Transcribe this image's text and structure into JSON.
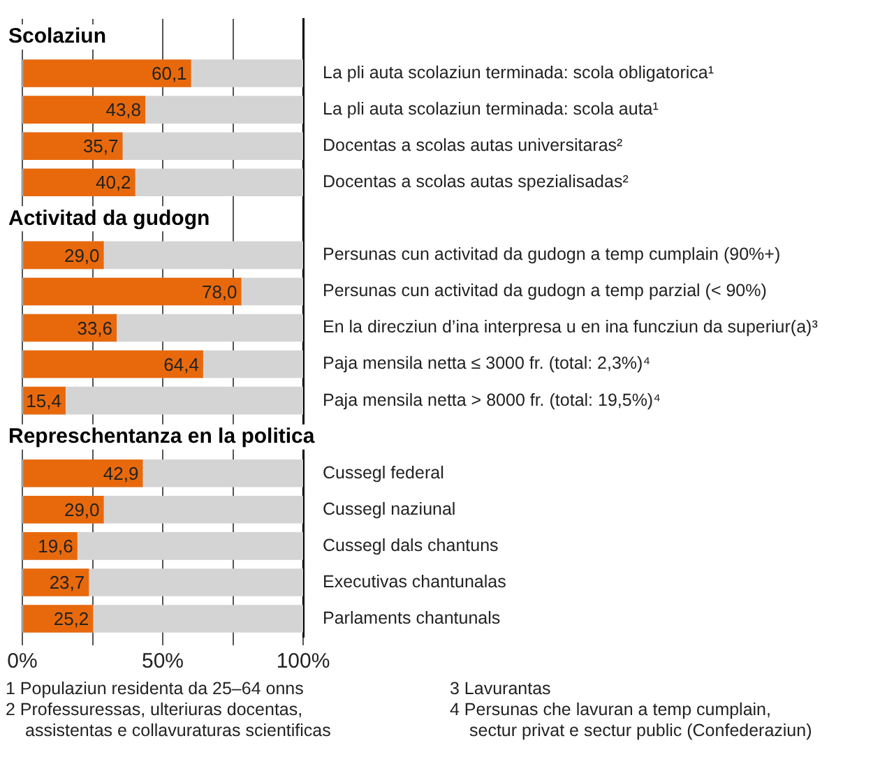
{
  "chart_data": {
    "type": "bar",
    "orientation": "horizontal",
    "categories": [
      "Scolaziun",
      "La pli auta scolaziun terminada: scola obligatorica¹",
      "La pli auta scolaziun terminada: scola auta¹",
      "Docentas a scolas autas universitaras²",
      "Docentas a scolas autas spezialisadas²",
      "Activitad da gudogn",
      "Persunas cun activitad da gudogn a temp cumplain (90%+)",
      "Persunas cun activitad da gudogn a temp parzial (< 90%)",
      "En la direcziun d’ina interpresa u en ina funcziun da superiur(a)³",
      "Paja mensila netta ≤ 3000 fr. (total: 2,3%)⁴",
      "Paja mensila netta > 8000 fr. (total: 19,5%)⁴",
      "Represchentanza en la politica",
      "Cussegl federal",
      "Cussegl naziunal",
      "Cussegl dals chantuns",
      "Executivas chantunalas",
      "Parlaments chantunals"
    ],
    "values": [
      null,
      60.1,
      43.8,
      35.7,
      40.2,
      null,
      29.0,
      78.0,
      33.6,
      64.4,
      15.4,
      null,
      42.9,
      29.0,
      19.6,
      23.7,
      25.2
    ],
    "color": "#e8690c",
    "xlim": [
      0,
      100
    ],
    "xticks": [
      {
        "value": 0,
        "label": "0%"
      },
      {
        "value": 25,
        "label": null
      },
      {
        "value": 50,
        "label": "50%"
      },
      {
        "value": 75,
        "label": null
      },
      {
        "value": 100,
        "label": "100%"
      }
    ],
    "value_labels": [
      null,
      "60,1",
      "43,8",
      "35,7",
      "40,2",
      null,
      "29,0",
      "78,0",
      "33,6",
      "64,4",
      "15,4",
      null,
      "42,9",
      "29,0",
      "19,6",
      "23,7",
      "25,2"
    ],
    "grid": "x",
    "legend": false,
    "annotations": [
      "1  Populaziun residenta da 25–64 onns",
      "2  Professuressas, ulteriuras docentas, assistentas e collavuraturas scientificas",
      "3  Lavurantas",
      "4  Persunas che lavuran a temp cumplain, sectur privat e sectur public (Confederaziun)"
    ]
  }
}
